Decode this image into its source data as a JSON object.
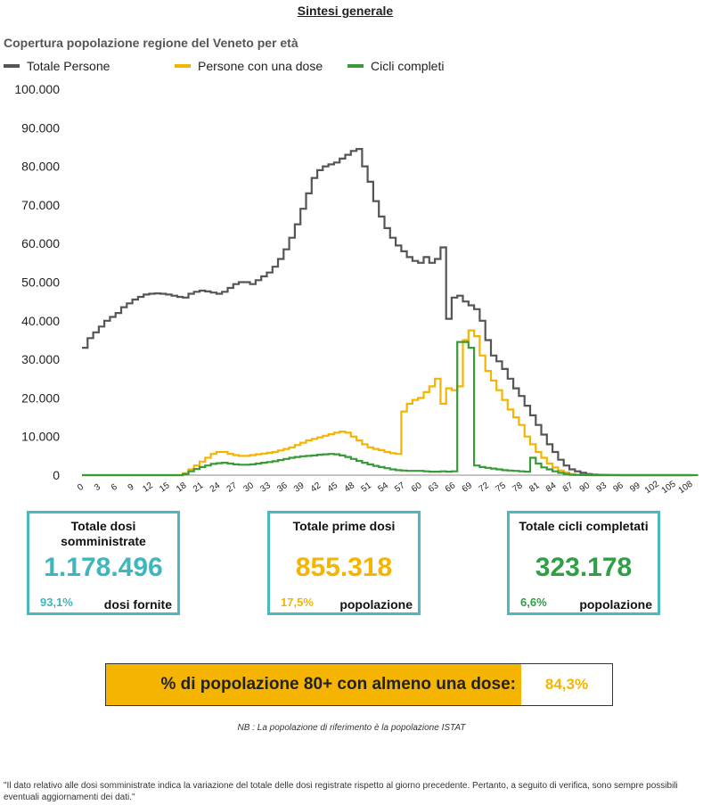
{
  "page_title": "Sintesi generale",
  "chart_data": {
    "type": "line",
    "title": "Copertura popolazione regione del Veneto per età",
    "xlabel": "",
    "ylabel": "",
    "xlim": [
      0,
      108
    ],
    "ylim": [
      0,
      100000
    ],
    "x_ticks": [
      0,
      3,
      6,
      9,
      12,
      15,
      18,
      21,
      24,
      27,
      30,
      33,
      36,
      39,
      42,
      45,
      48,
      51,
      54,
      57,
      60,
      63,
      66,
      69,
      72,
      75,
      78,
      81,
      84,
      87,
      90,
      93,
      96,
      99,
      102,
      105,
      108
    ],
    "y_ticks": [
      0,
      10000,
      20000,
      30000,
      40000,
      50000,
      60000,
      70000,
      80000,
      90000,
      100000
    ],
    "y_tick_labels": [
      "0",
      "10.000",
      "20.000",
      "30.000",
      "40.000",
      "50.000",
      "60.000",
      "70.000",
      "80.000",
      "90.000",
      "100.000"
    ],
    "legend_position": "top",
    "series": [
      {
        "name": "Totale Persone",
        "color": "#555555",
        "values": [
          33000,
          35500,
          37000,
          38500,
          40000,
          41000,
          42000,
          43500,
          44500,
          45500,
          46200,
          46800,
          47000,
          47100,
          47000,
          46800,
          46500,
          46200,
          46000,
          47000,
          47500,
          47800,
          47600,
          47300,
          47000,
          47500,
          48500,
          49500,
          50000,
          50000,
          49500,
          50500,
          51500,
          52500,
          54000,
          56000,
          58500,
          61500,
          65000,
          69000,
          73000,
          77000,
          79000,
          80000,
          80500,
          81000,
          82000,
          83000,
          84000,
          84500,
          80000,
          76000,
          71000,
          67000,
          64000,
          61500,
          59500,
          58000,
          56500,
          55500,
          55000,
          56500,
          55000,
          56000,
          59000,
          40500,
          46000,
          46500,
          45000,
          44000,
          43000,
          40000,
          35000,
          31000,
          29500,
          27500,
          25000,
          22500,
          20500,
          18000,
          15500,
          13000,
          10500,
          8000,
          6000,
          4000,
          2500,
          1500,
          1000,
          600,
          300,
          150,
          100,
          60,
          40,
          20,
          10,
          5,
          0,
          0,
          0,
          0,
          0,
          0,
          0,
          0,
          0,
          0,
          0
        ]
      },
      {
        "name": "Persone con una dose",
        "color": "#f5b400",
        "values": [
          0,
          0,
          0,
          0,
          0,
          0,
          0,
          0,
          0,
          0,
          0,
          0,
          0,
          0,
          0,
          0,
          0,
          0,
          500,
          1500,
          2500,
          3500,
          4500,
          5500,
          6000,
          6000,
          5500,
          5200,
          5000,
          5000,
          5200,
          5400,
          5600,
          5800,
          6000,
          6400,
          6800,
          7200,
          7800,
          8400,
          9000,
          9400,
          9800,
          10200,
          10600,
          11000,
          11300,
          11000,
          10000,
          9000,
          8000,
          7200,
          6800,
          6500,
          6000,
          5700,
          5500,
          16500,
          18500,
          19500,
          20000,
          21500,
          23000,
          25000,
          18500,
          22500,
          22000,
          23000,
          35000,
          37500,
          36000,
          31000,
          27000,
          24500,
          22000,
          19500,
          17000,
          15000,
          13000,
          10000,
          8000,
          6000,
          4500,
          3000,
          2000,
          1200,
          700,
          300,
          100,
          50,
          20,
          10,
          0,
          0,
          0,
          0,
          0,
          0,
          0,
          0,
          0,
          0,
          0,
          0,
          0,
          0,
          0,
          0,
          0
        ]
      },
      {
        "name": "Cicli completi",
        "color": "#3a9a3a",
        "values": [
          0,
          0,
          0,
          0,
          0,
          0,
          0,
          0,
          0,
          0,
          0,
          0,
          0,
          0,
          0,
          0,
          0,
          0,
          300,
          1000,
          1600,
          2100,
          2500,
          2900,
          3100,
          3200,
          3000,
          2800,
          2700,
          2700,
          2800,
          3000,
          3200,
          3400,
          3600,
          3900,
          4200,
          4500,
          4700,
          4900,
          5000,
          5100,
          5300,
          5400,
          5500,
          5400,
          5100,
          4700,
          4200,
          3700,
          3200,
          2800,
          2400,
          2100,
          1800,
          1500,
          1300,
          1200,
          1100,
          1100,
          1100,
          1000,
          900,
          900,
          1000,
          900,
          1000,
          34500,
          34500,
          33000,
          2500,
          2100,
          1900,
          1700,
          1500,
          1300,
          1200,
          1100,
          1000,
          900,
          4500,
          3000,
          2000,
          1500,
          1000,
          600,
          300,
          100,
          50,
          20,
          10,
          0,
          0,
          0,
          0,
          0,
          0,
          0,
          0,
          0,
          0,
          0,
          0,
          0,
          0,
          0,
          0,
          0,
          0,
          0
        ]
      }
    ]
  },
  "cards": {
    "total_doses": {
      "label": "Totale dosi somministrate",
      "value": "1.178.496",
      "pct": "93,1%",
      "note": "dosi fornite",
      "color": "#3fb6bf"
    },
    "first_doses": {
      "label": "Totale prime dosi",
      "value": "855.318",
      "pct": "17,5%",
      "note": "popolazione",
      "color": "#f5b400"
    },
    "full_cycles": {
      "label": "Totale cicli completati",
      "value": "323.178",
      "pct": "6,6%",
      "note": "popolazione",
      "color": "#2f9e44"
    }
  },
  "summary": {
    "label": "% di popolazione 80+ con almeno una dose:",
    "value": "84,3%"
  },
  "nb_note": "NB : La popolazione di riferimento è la popolazione ISTAT",
  "footnote": "\"Il dato relativo alle dosi somministrate indica la variazione del totale delle dosi registrate rispetto al giorno precedente. Pertanto, a seguito di verifica, sono sempre possibili eventuali aggiornamenti dei dati.\""
}
